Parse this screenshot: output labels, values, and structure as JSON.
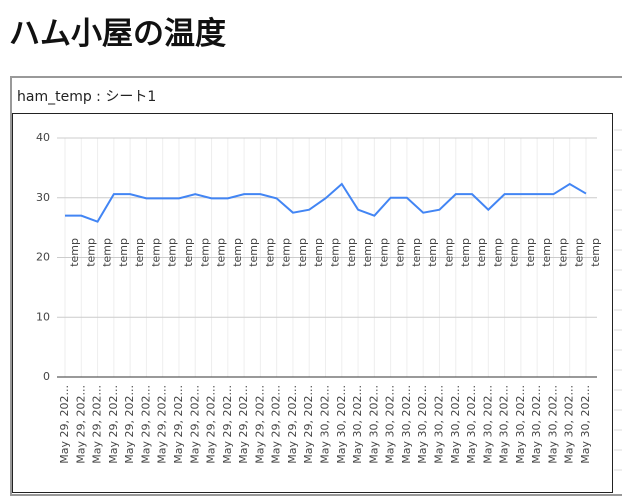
{
  "page": {
    "title": "ハム小屋の温度",
    "embed_title": "ham_temp : シート1"
  },
  "chart_data": {
    "type": "line",
    "categories": [
      "May 29, 202...",
      "May 29, 202...",
      "May 29, 202...",
      "May 29, 202...",
      "May 29, 202...",
      "May 29, 202...",
      "May 29, 202...",
      "May 29, 202...",
      "May 29, 202...",
      "May 29, 202...",
      "May 29, 202...",
      "May 29, 202...",
      "May 29, 202...",
      "May 29, 202...",
      "May 29, 202...",
      "May 29, 202...",
      "May 30, 202...",
      "May 30, 202...",
      "May 30, 202...",
      "May 30, 202...",
      "May 30, 202...",
      "May 30, 202...",
      "May 30, 202...",
      "May 30, 202...",
      "May 30, 202...",
      "May 30, 202...",
      "May 30, 202...",
      "May 30, 202...",
      "May 30, 202...",
      "May 30, 202...",
      "May 30, 202...",
      "May 30, 202...",
      "May 30, 202..."
    ],
    "series": [
      {
        "name": "temp",
        "color": "#4285f4",
        "values": [
          27,
          27,
          26,
          30.6,
          30.6,
          29.9,
          29.9,
          29.9,
          30.6,
          29.9,
          29.9,
          30.6,
          30.6,
          29.9,
          27.5,
          28,
          29.9,
          32.3,
          28,
          27,
          30,
          30,
          27.5,
          28,
          30.6,
          30.6,
          28,
          30.6,
          30.6,
          30.6,
          30.6,
          32.3,
          30.7
        ]
      }
    ],
    "ylim": [
      0,
      40
    ],
    "yticks": [
      0,
      10,
      20,
      30,
      40
    ],
    "grid": true
  }
}
